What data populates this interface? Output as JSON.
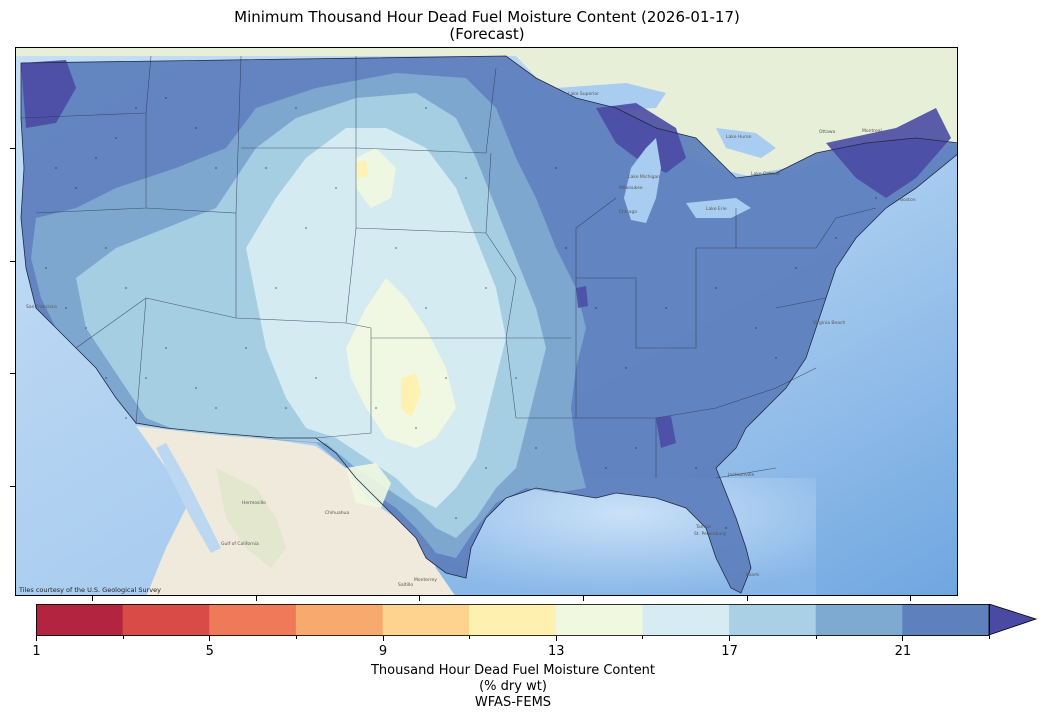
{
  "figure": {
    "title_line1": "Minimum Thousand Hour Dead Fuel Moisture Content (2026-01-17)",
    "title_line2": "(Forecast)"
  },
  "map": {
    "tile_credit": "Tiles courtesy of the U.S. Geological Survey",
    "region": "Contiguous United States",
    "place_labels": [
      "Hermosillo",
      "Chihuahua",
      "Monterrey",
      "Saltillo",
      "Milwaukee",
      "Chicago",
      "Jacksonville",
      "Tampa",
      "St. Petersburg",
      "Miami",
      "Virginia Beach",
      "Boston",
      "San Francisco",
      "Lake Superior",
      "Lake Michigan",
      "Lake Huron",
      "Lake Ontario",
      "Lake Erie",
      "Ottawa",
      "Montreal",
      "Gulf of California"
    ]
  },
  "colorbar": {
    "label_line1": "Thousand Hour Dead Fuel Moisture Content",
    "label_line2": "(% dry wt)",
    "label_line3": "WFAS-FEMS",
    "tick_labels": [
      "1",
      "5",
      "9",
      "13",
      "17",
      "21"
    ],
    "extend": "max",
    "colors": [
      "#b2243f",
      "#d84b47",
      "#ef7a5a",
      "#f8a96d",
      "#fdd38f",
      "#fef1b0",
      "#f1f8e0",
      "#d6ecf2",
      "#a9d0e4",
      "#7ea9d0",
      "#5e80bd",
      "#4a4aa3"
    ]
  },
  "chart_data": {
    "type": "heatmap",
    "title": "Minimum Thousand Hour Dead Fuel Moisture Content (2026-01-17) (Forecast)",
    "color_scale": {
      "bins": [
        [
          1,
          3
        ],
        [
          3,
          5
        ],
        [
          5,
          7
        ],
        [
          7,
          9
        ],
        [
          9,
          11
        ],
        [
          11,
          13
        ],
        [
          13,
          15
        ],
        [
          15,
          17
        ],
        [
          17,
          19
        ],
        [
          19,
          21
        ],
        [
          21,
          23
        ]
      ],
      "over": ">23",
      "ticks": [
        1,
        5,
        9,
        13,
        17,
        21
      ],
      "units": "% dry wt"
    },
    "regional_values_estimate": {
      "Pacific Northwest coast": "21-23+",
      "Great Basin": "17-21",
      "Southern Plains / West Texas": "11-15",
      "Northern Plains": "15-19",
      "Midwest": "21-23",
      "Southeast": "21-23",
      "Northeast / New England": "23+",
      "Upper Michigan": "23+"
    }
  }
}
